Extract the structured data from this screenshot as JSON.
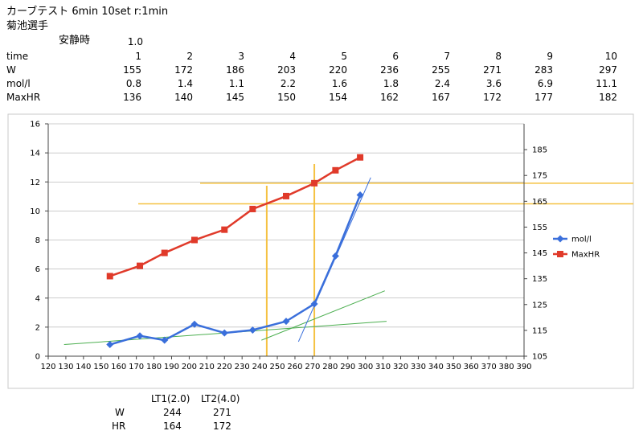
{
  "header": {
    "title": "カーブテスト  6min 10set r:1min",
    "athlete": "菊池選手",
    "rest_label": "安静時",
    "rest_value": "1.0"
  },
  "table": {
    "columns": [
      "1",
      "2",
      "3",
      "4",
      "5",
      "6",
      "7",
      "8",
      "9",
      "10"
    ],
    "rows": [
      {
        "label": "time",
        "values": [
          "1",
          "2",
          "3",
          "4",
          "5",
          "6",
          "7",
          "8",
          "9",
          "10"
        ]
      },
      {
        "label": "W",
        "values": [
          "155",
          "172",
          "186",
          "203",
          "220",
          "236",
          "255",
          "271",
          "283",
          "297"
        ]
      },
      {
        "label": "mol/l",
        "values": [
          "0.8",
          "1.4",
          "1.1",
          "2.2",
          "1.6",
          "1.8",
          "2.4",
          "3.6",
          "6.9",
          "11.1"
        ]
      },
      {
        "label": "MaxHR",
        "values": [
          "136",
          "140",
          "145",
          "150",
          "154",
          "162",
          "167",
          "172",
          "177",
          "182"
        ]
      }
    ]
  },
  "summary": {
    "col1": "LT1(2.0)",
    "col2": "LT2(4.0)",
    "rows": [
      {
        "label": "W",
        "v1": "244",
        "v2": "271"
      },
      {
        "label": "HR",
        "v1": "164",
        "v2": "172"
      }
    ]
  },
  "colors": {
    "mol": "#3A6FDB",
    "hr": "#E03A2A",
    "trend": "#4CAF50",
    "guide": "#F5C242",
    "grid": "#999999"
  },
  "chart_data": {
    "type": "line",
    "x": [
      155,
      172,
      186,
      203,
      220,
      236,
      255,
      271,
      283,
      297
    ],
    "xlim": [
      120,
      390
    ],
    "xticks": [
      120,
      130,
      140,
      150,
      160,
      170,
      180,
      190,
      200,
      210,
      220,
      230,
      240,
      250,
      260,
      270,
      280,
      290,
      300,
      310,
      320,
      330,
      340,
      350,
      360,
      370,
      380,
      390
    ],
    "ylim": [
      0,
      16
    ],
    "yticks": [
      0,
      2,
      4,
      6,
      8,
      10,
      12,
      14,
      16
    ],
    "y2lim": [
      105,
      195
    ],
    "y2ticks": [
      105,
      115,
      125,
      135,
      145,
      155,
      165,
      175,
      185
    ],
    "series": [
      {
        "name": "mol/l",
        "axis": "left",
        "marker": "diamond",
        "values": [
          0.8,
          1.4,
          1.1,
          2.2,
          1.6,
          1.8,
          2.4,
          3.6,
          6.9,
          11.1
        ]
      },
      {
        "name": "MaxHR",
        "axis": "right",
        "marker": "square",
        "values": [
          136,
          140,
          145,
          150,
          154,
          162,
          167,
          172,
          177,
          182
        ]
      }
    ],
    "trendlines": [
      {
        "axis": "left",
        "from": [
          129,
          0.8
        ],
        "to": [
          312,
          2.4
        ]
      },
      {
        "axis": "left",
        "from": [
          241,
          1.1
        ],
        "to": [
          311,
          4.5
        ]
      },
      {
        "axis": "left",
        "from": [
          262,
          1.0
        ],
        "to": [
          303,
          12.3
        ]
      }
    ],
    "reference_lines": {
      "vertical": [
        244,
        271
      ],
      "horizontal_right": [
        164,
        172
      ]
    },
    "legend_position": "right",
    "grid": "horizontal"
  }
}
